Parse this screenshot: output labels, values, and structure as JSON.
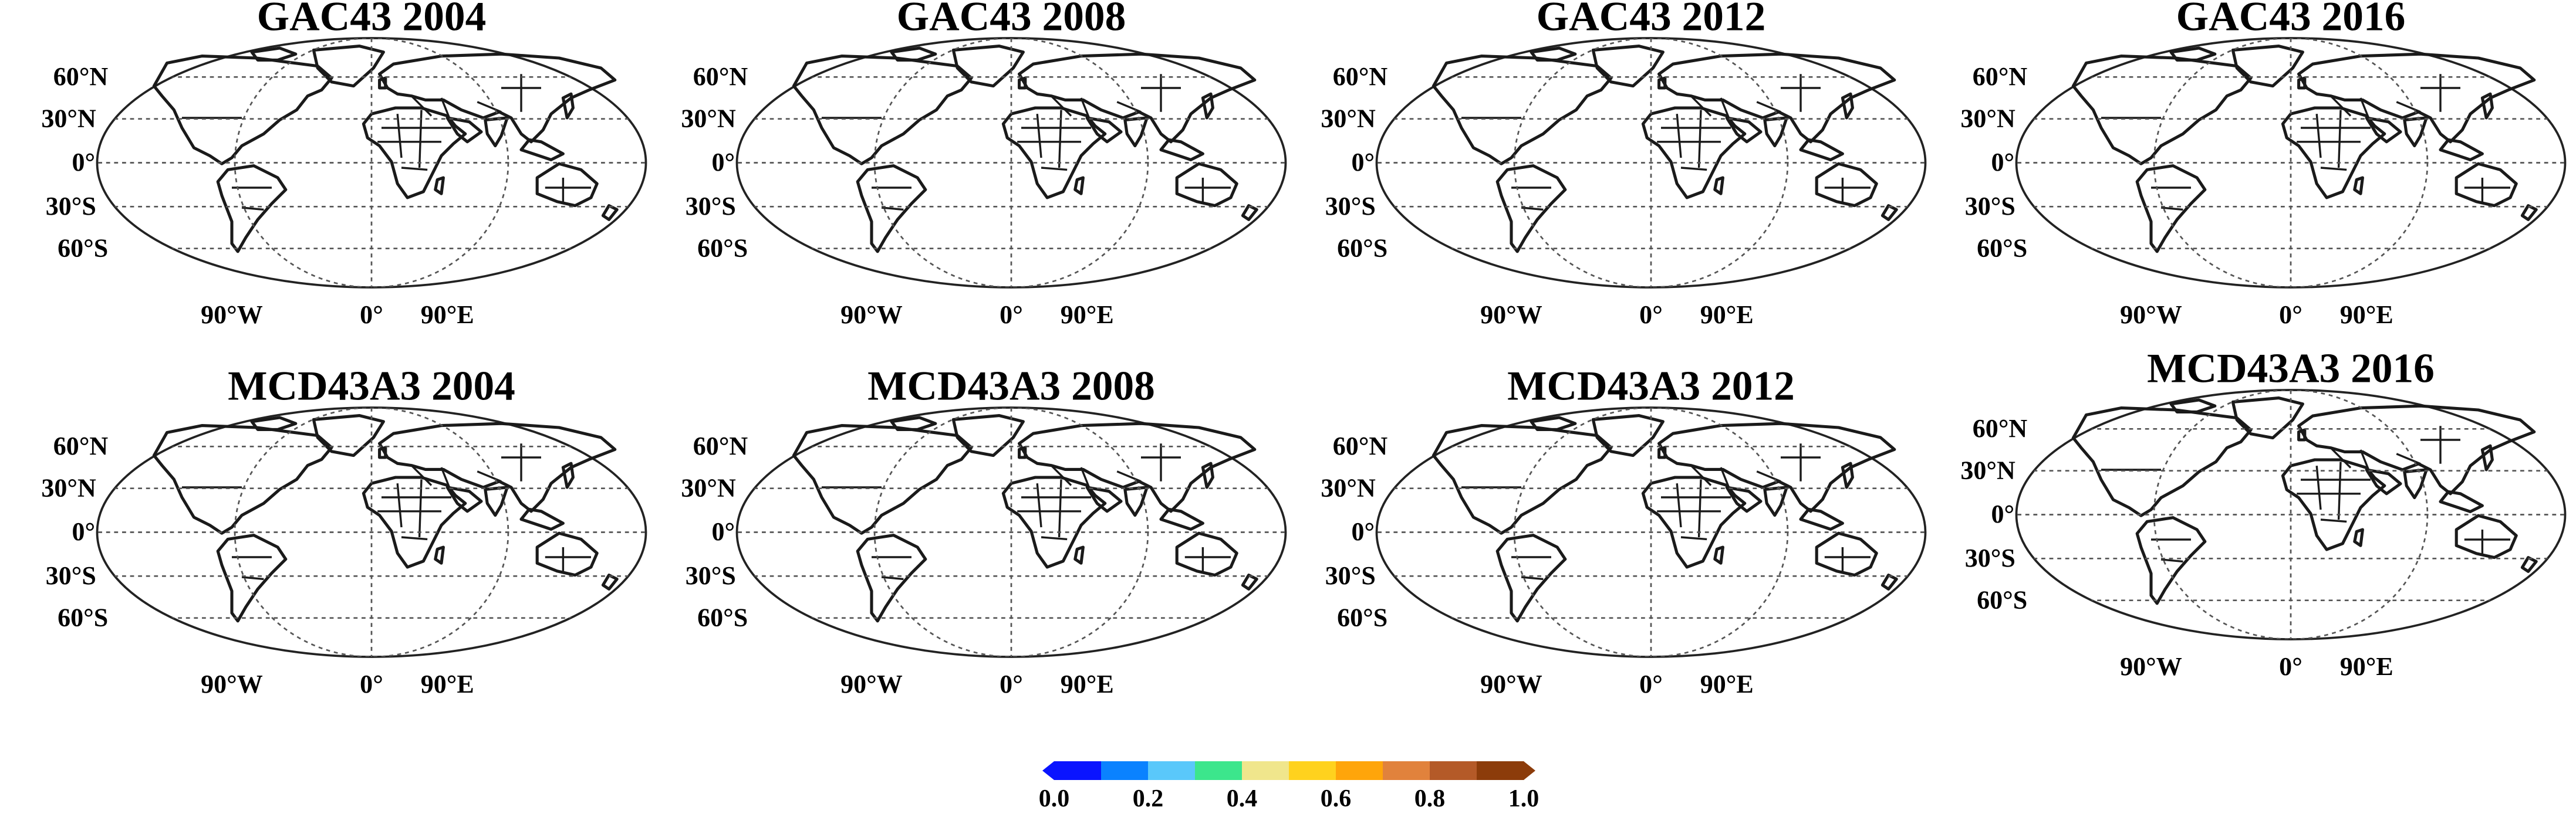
{
  "figure": {
    "panels": [
      {
        "title": "GAC43 2004",
        "dataset": "GAC43",
        "year": "2004",
        "scheme": "gac"
      },
      {
        "title": "GAC43 2008",
        "dataset": "GAC43",
        "year": "2008",
        "scheme": "gac"
      },
      {
        "title": "GAC43 2012",
        "dataset": "GAC43",
        "year": "2012",
        "scheme": "gac"
      },
      {
        "title": "GAC43 2016",
        "dataset": "GAC43",
        "year": "2016",
        "scheme": "gac"
      },
      {
        "title": "MCD43A3 2004",
        "dataset": "MCD43A3",
        "year": "2004",
        "scheme": "mcd"
      },
      {
        "title": "MCD43A3 2008",
        "dataset": "MCD43A3",
        "year": "2008",
        "scheme": "mcd"
      },
      {
        "title": "MCD43A3 2012",
        "dataset": "MCD43A3",
        "year": "2012",
        "scheme": "mcd"
      },
      {
        "title": "MCD43A3 2016",
        "dataset": "MCD43A3",
        "year": "2016",
        "scheme": "mcd"
      }
    ],
    "lat_labels": [
      "60°N",
      "30°N",
      "0°",
      "30°S",
      "60°S"
    ],
    "lon_labels": [
      "90°W",
      "0°",
      "90°E"
    ],
    "colorbar": {
      "ticks": [
        "0.0",
        "0.2",
        "0.4",
        "0.6",
        "0.8",
        "1.0"
      ],
      "range": [
        0.0,
        1.0
      ],
      "colors": [
        "#0a14ff",
        "#0a82ff",
        "#5ac8fa",
        "#3ce68c",
        "#f0e68c",
        "#ffd21e",
        "#ffa50a",
        "#e1823c",
        "#b45a28",
        "#8c3c0a"
      ]
    }
  }
}
